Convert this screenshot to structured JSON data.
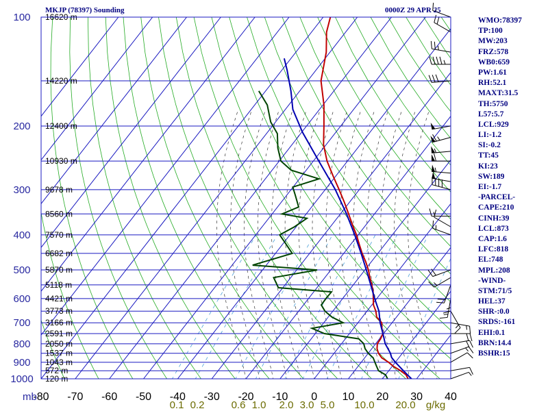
{
  "header": {
    "title": "MKJP (78397) Sounding",
    "datetime": "0000Z 29 APR 25"
  },
  "indices": [
    "WMO:78397",
    "TP:100",
    "MW:203",
    "FRZ:578",
    "WB0:659",
    "PW:1.61",
    "RH:52.1",
    "MAXT:31.5",
    "TH:5750",
    "L57:5.7",
    "LCL:929",
    "LI:-1.2",
    "SI:-0.2",
    "TT:45",
    "KI:23",
    "SW:189",
    "EI:-1.7",
    "-PARCEL-",
    "CAPE:210",
    "CINH:39",
    "LCL:873",
    "CAP:1.6",
    "LFC:818",
    "EL:748",
    "MPL:208",
    "-WIND-",
    "STM:71/5",
    "HEL:37",
    "SHR-:0.0",
    "SRDS:-161",
    "EHI:0.1",
    "BRN:14.4",
    "BSHR:15"
  ],
  "colors": {
    "temperature": "#c00000",
    "dewpoint": "#004400",
    "parcel": "#0000b0",
    "isobar_isotherm_grid": "#1818c0",
    "dry_adiabat": "#22aa22",
    "moist_adiabat": "#333333",
    "mixing_ratio": "#4aa0d8",
    "text": "#000080"
  },
  "chart_data": {
    "type": "line",
    "title": "MKJP (78397) Sounding",
    "xlabel": "",
    "ylabel": "mb",
    "xlim": [
      -80,
      40
    ],
    "ylim_pressure_mb": [
      1000,
      100
    ],
    "pressure_ticks": [
      100,
      200,
      300,
      400,
      500,
      600,
      700,
      800,
      900,
      1000
    ],
    "height_labels": [
      {
        "p": 100,
        "label": "16620 m"
      },
      {
        "p": 150,
        "label": "14220 m"
      },
      {
        "p": 200,
        "label": "12400 m"
      },
      {
        "p": 250,
        "label": "10930 m"
      },
      {
        "p": 300,
        "label": "9678 m"
      },
      {
        "p": 350,
        "label": "8560 m"
      },
      {
        "p": 400,
        "label": "7570 m"
      },
      {
        "p": 450,
        "label": "6682 m"
      },
      {
        "p": 500,
        "label": "5870 m"
      },
      {
        "p": 550,
        "label": "5118 m"
      },
      {
        "p": 600,
        "label": "4421 m"
      },
      {
        "p": 650,
        "label": "3773 m"
      },
      {
        "p": 700,
        "label": "3166 m"
      },
      {
        "p": 750,
        "label": "2591 m"
      },
      {
        "p": 800,
        "label": "2050 m"
      },
      {
        "p": 850,
        "label": "1537 m"
      },
      {
        "p": 900,
        "label": "1043 m"
      },
      {
        "p": 950,
        "label": "572 m"
      },
      {
        "p": 1000,
        "label": "120 m"
      }
    ],
    "temperature_ticks": [
      {
        "value": -80,
        "label": "-80"
      },
      {
        "value": -70,
        "label": "-70"
      },
      {
        "value": -60,
        "label": "-60"
      },
      {
        "value": -50,
        "label": "-50"
      },
      {
        "value": -40,
        "label": "-40"
      },
      {
        "value": -30,
        "label": "-30"
      },
      {
        "value": -20,
        "label": "-20"
      },
      {
        "value": -10,
        "label": "-10"
      },
      {
        "value": 0,
        "label": "0"
      },
      {
        "value": 10,
        "label": "10"
      },
      {
        "value": 20,
        "label": "20"
      },
      {
        "value": 30,
        "label": "30"
      },
      {
        "value": 40,
        "label": "40"
      }
    ],
    "mixing_ratio_labels": [
      "0.1",
      "0.2",
      "0.6",
      "1.0",
      "2.0",
      "3.0",
      "5.0",
      "10.0",
      "20.0",
      "g/kg"
    ],
    "series": [
      {
        "name": "Temperature",
        "points": [
          {
            "p": 1000,
            "t": 27.5
          },
          {
            "p": 975,
            "t": 26.0
          },
          {
            "p": 950,
            "t": 23.5
          },
          {
            "p": 925,
            "t": 20.5
          },
          {
            "p": 900,
            "t": 18.0
          },
          {
            "p": 875,
            "t": 15.0
          },
          {
            "p": 850,
            "t": 13.0
          },
          {
            "p": 825,
            "t": 11.5
          },
          {
            "p": 800,
            "t": 10.5
          },
          {
            "p": 775,
            "t": 10.3
          },
          {
            "p": 750,
            "t": 9.8
          },
          {
            "p": 725,
            "t": 8.3
          },
          {
            "p": 700,
            "t": 7.0
          },
          {
            "p": 675,
            "t": 4.2
          },
          {
            "p": 650,
            "t": 2.6
          },
          {
            "p": 625,
            "t": 0.5
          },
          {
            "p": 600,
            "t": -1.0
          },
          {
            "p": 575,
            "t": -2.6
          },
          {
            "p": 550,
            "t": -4.6
          },
          {
            "p": 525,
            "t": -6.8
          },
          {
            "p": 500,
            "t": -9.0
          },
          {
            "p": 475,
            "t": -11.6
          },
          {
            "p": 450,
            "t": -14.6
          },
          {
            "p": 425,
            "t": -17.5
          },
          {
            "p": 400,
            "t": -20.5
          },
          {
            "p": 375,
            "t": -24.0
          },
          {
            "p": 350,
            "t": -27.6
          },
          {
            "p": 325,
            "t": -31.5
          },
          {
            "p": 300,
            "t": -35.9
          },
          {
            "p": 275,
            "t": -40.8
          },
          {
            "p": 250,
            "t": -46.0
          },
          {
            "p": 225,
            "t": -50.8
          },
          {
            "p": 200,
            "t": -54.9
          },
          {
            "p": 175,
            "t": -59.7
          },
          {
            "p": 150,
            "t": -66.1
          },
          {
            "p": 125,
            "t": -71.1
          },
          {
            "p": 110,
            "t": -75.6
          },
          {
            "p": 100,
            "t": -77.9
          }
        ]
      },
      {
        "name": "Dewpoint",
        "points": [
          {
            "p": 1000,
            "t": 21.5
          },
          {
            "p": 975,
            "t": 20.0
          },
          {
            "p": 950,
            "t": 17.0
          },
          {
            "p": 925,
            "t": 15.5
          },
          {
            "p": 900,
            "t": 14.0
          },
          {
            "p": 875,
            "t": 12.5
          },
          {
            "p": 850,
            "t": 10.0
          },
          {
            "p": 825,
            "t": 8.0
          },
          {
            "p": 800,
            "t": 6.5
          },
          {
            "p": 775,
            "t": 3.9
          },
          {
            "p": 750,
            "t": -7.3
          },
          {
            "p": 725,
            "t": -12.2
          },
          {
            "p": 700,
            "t": -4.3
          },
          {
            "p": 675,
            "t": -8.9
          },
          {
            "p": 650,
            "t": -12.3
          },
          {
            "p": 625,
            "t": -14.8
          },
          {
            "p": 600,
            "t": -14.9
          },
          {
            "p": 575,
            "t": -14.8
          },
          {
            "p": 560,
            "t": -31.3
          },
          {
            "p": 525,
            "t": -35.0
          },
          {
            "p": 500,
            "t": -24.0
          },
          {
            "p": 485,
            "t": -44.0
          },
          {
            "p": 450,
            "t": -35.1
          },
          {
            "p": 420,
            "t": -39.7
          },
          {
            "p": 400,
            "t": -43.0
          },
          {
            "p": 380,
            "t": -40.5
          },
          {
            "p": 360,
            "t": -38.8
          },
          {
            "p": 350,
            "t": -47.1
          },
          {
            "p": 335,
            "t": -43.8
          },
          {
            "p": 310,
            "t": -47.6
          },
          {
            "p": 295,
            "t": -50.1
          },
          {
            "p": 280,
            "t": -44.3
          },
          {
            "p": 265,
            "t": -54.4
          },
          {
            "p": 250,
            "t": -59.5
          },
          {
            "p": 230,
            "t": -63.4
          },
          {
            "p": 210,
            "t": -66.8
          },
          {
            "p": 195,
            "t": -71.4
          },
          {
            "p": 175,
            "t": -76.3
          },
          {
            "p": 160,
            "t": -82.0
          }
        ]
      },
      {
        "name": "Parcel",
        "points": [
          {
            "p": 1000,
            "t": 28.5
          },
          {
            "p": 950,
            "t": 24.3
          },
          {
            "p": 900,
            "t": 20.0
          },
          {
            "p": 873,
            "t": 17.8
          },
          {
            "p": 850,
            "t": 16.5
          },
          {
            "p": 800,
            "t": 12.8
          },
          {
            "p": 750,
            "t": 9.8
          },
          {
            "p": 700,
            "t": 6.5
          },
          {
            "p": 650,
            "t": 3.5
          },
          {
            "p": 600,
            "t": -0.6
          },
          {
            "p": 550,
            "t": -4.9
          },
          {
            "p": 500,
            "t": -9.6
          },
          {
            "p": 450,
            "t": -14.9
          },
          {
            "p": 400,
            "t": -21.0
          },
          {
            "p": 350,
            "t": -28.2
          },
          {
            "p": 300,
            "t": -37.0
          },
          {
            "p": 250,
            "t": -48.4
          },
          {
            "p": 208,
            "t": -59.8
          },
          {
            "p": 180,
            "t": -67.8
          },
          {
            "p": 160,
            "t": -72.6
          },
          {
            "p": 140,
            "t": -78.5
          },
          {
            "p": 130,
            "t": -82.0
          }
        ]
      }
    ],
    "wind_barbs": [
      {
        "p": 100,
        "dir": 290,
        "spd": 15
      },
      {
        "p": 110,
        "dir": 300,
        "spd": 20
      },
      {
        "p": 125,
        "dir": 280,
        "spd": 25
      },
      {
        "p": 135,
        "dir": 270,
        "spd": 45
      },
      {
        "p": 150,
        "dir": 265,
        "spd": 30
      },
      {
        "p": 200,
        "dir": 260,
        "spd": 50
      },
      {
        "p": 215,
        "dir": 255,
        "spd": 65
      },
      {
        "p": 235,
        "dir": 265,
        "spd": 55
      },
      {
        "p": 250,
        "dir": 270,
        "spd": 60
      },
      {
        "p": 270,
        "dir": 275,
        "spd": 55
      },
      {
        "p": 285,
        "dir": 280,
        "spd": 50
      },
      {
        "p": 300,
        "dir": 285,
        "spd": 40
      },
      {
        "p": 355,
        "dir": 270,
        "spd": 15
      },
      {
        "p": 380,
        "dir": 300,
        "spd": 10
      },
      {
        "p": 400,
        "dir": 290,
        "spd": 15
      },
      {
        "p": 500,
        "dir": 250,
        "spd": 20
      },
      {
        "p": 525,
        "dir": 240,
        "spd": 15
      },
      {
        "p": 550,
        "dir": 200,
        "spd": 20
      },
      {
        "p": 575,
        "dir": 180,
        "spd": 15
      },
      {
        "p": 600,
        "dir": 190,
        "spd": 15
      },
      {
        "p": 650,
        "dir": 150,
        "spd": 15
      },
      {
        "p": 700,
        "dir": 100,
        "spd": 15
      },
      {
        "p": 750,
        "dir": 90,
        "spd": 20
      },
      {
        "p": 800,
        "dir": 80,
        "spd": 20
      },
      {
        "p": 850,
        "dir": 70,
        "spd": 15
      },
      {
        "p": 900,
        "dir": 60,
        "spd": 10
      },
      {
        "p": 950,
        "dir": 80,
        "spd": 10
      },
      {
        "p": 1000,
        "dir": 70,
        "spd": 5
      }
    ]
  }
}
